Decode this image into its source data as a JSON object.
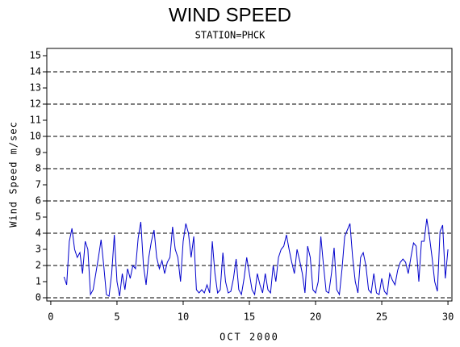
{
  "chart_data": {
    "type": "line",
    "title": "WIND SPEED",
    "subtitle": "STATION=PHCK",
    "x_label": "OCT 2000",
    "y_label": "Wind Speed m/sec",
    "xlim": [
      -0.3,
      30.3
    ],
    "xticks": [
      0,
      5,
      10,
      15,
      20,
      25,
      30
    ],
    "ylim": [
      -0.2,
      15.45
    ],
    "yticks": [
      0,
      1,
      2,
      3,
      4,
      5,
      6,
      7,
      8,
      9,
      10,
      11,
      12,
      13,
      14,
      15
    ],
    "grid": true,
    "grid_step": 2,
    "x": [
      1,
      1.2,
      1.4,
      1.6,
      1.8,
      2,
      2.2,
      2.4,
      2.6,
      2.8,
      3,
      3.2,
      3.4,
      3.6,
      3.8,
      4,
      4.2,
      4.4,
      4.6,
      4.8,
      5,
      5.2,
      5.4,
      5.6,
      5.8,
      6,
      6.2,
      6.4,
      6.6,
      6.8,
      7,
      7.2,
      7.4,
      7.6,
      7.8,
      8,
      8.2,
      8.4,
      8.6,
      8.8,
      9,
      9.2,
      9.4,
      9.6,
      9.8,
      10,
      10.2,
      10.4,
      10.6,
      10.8,
      11,
      11.2,
      11.4,
      11.6,
      11.8,
      12,
      12.2,
      12.4,
      12.6,
      12.8,
      13,
      13.2,
      13.4,
      13.6,
      13.8,
      14,
      14.2,
      14.4,
      14.6,
      14.8,
      15,
      15.2,
      15.4,
      15.6,
      15.8,
      16,
      16.2,
      16.4,
      16.6,
      16.8,
      17,
      17.2,
      17.4,
      17.6,
      17.8,
      18,
      18.2,
      18.4,
      18.6,
      18.8,
      19,
      19.2,
      19.4,
      19.6,
      19.8,
      20,
      20.2,
      20.4,
      20.6,
      20.8,
      21,
      21.2,
      21.4,
      21.6,
      21.8,
      22,
      22.2,
      22.4,
      22.6,
      22.8,
      23,
      23.2,
      23.4,
      23.6,
      23.8,
      24,
      24.2,
      24.4,
      24.6,
      24.8,
      25,
      25.2,
      25.4,
      25.6,
      25.8,
      26,
      26.2,
      26.4,
      26.6,
      26.8,
      27,
      27.2,
      27.4,
      27.6,
      27.8,
      28,
      28.2,
      28.4,
      28.6,
      28.8,
      29,
      29.2,
      29.4,
      29.6,
      29.8,
      30
    ],
    "series": [
      {
        "name": "Wind Speed",
        "color": "#0000cc",
        "values": [
          1.3,
          0.8,
          3.5,
          4.3,
          3.0,
          2.5,
          2.8,
          1.5,
          3.5,
          3.0,
          0.2,
          0.5,
          1.5,
          2.5,
          3.6,
          2.0,
          0.2,
          0.1,
          1.5,
          3.9,
          1.0,
          0.1,
          1.5,
          0.5,
          1.8,
          1.2,
          2.0,
          1.8,
          3.7,
          4.7,
          2.0,
          0.8,
          2.5,
          3.5,
          4.2,
          2.5,
          1.8,
          2.3,
          1.5,
          2.2,
          2.5,
          4.4,
          3.0,
          2.5,
          1.0,
          3.5,
          4.6,
          4.0,
          2.5,
          3.8,
          0.5,
          0.3,
          0.5,
          0.3,
          0.8,
          0.3,
          3.5,
          1.5,
          0.3,
          0.5,
          2.8,
          1.0,
          0.3,
          0.4,
          1.2,
          2.4,
          0.5,
          0.2,
          1.2,
          2.5,
          1.5,
          0.5,
          0.2,
          1.5,
          0.8,
          0.3,
          1.5,
          0.5,
          0.3,
          2.0,
          1.0,
          2.5,
          3.0,
          3.2,
          3.9,
          3.0,
          2.2,
          1.5,
          3.0,
          2.3,
          1.5,
          0.3,
          3.2,
          2.5,
          0.5,
          0.3,
          1.0,
          3.8,
          2.0,
          0.4,
          0.3,
          1.5,
          3.1,
          0.5,
          0.2,
          1.8,
          3.8,
          4.2,
          4.6,
          2.5,
          1.0,
          0.3,
          2.5,
          2.8,
          2.0,
          0.5,
          0.3,
          1.5,
          0.3,
          0.2,
          1.2,
          0.4,
          0.2,
          1.5,
          1.1,
          0.8,
          1.7,
          2.2,
          2.4,
          2.2,
          1.5,
          2.5,
          3.4,
          3.2,
          1.0,
          3.5,
          3.5,
          4.9,
          3.8,
          2.5,
          1.0,
          0.4,
          4.1,
          4.5,
          1.2,
          3.0
        ]
      }
    ]
  }
}
